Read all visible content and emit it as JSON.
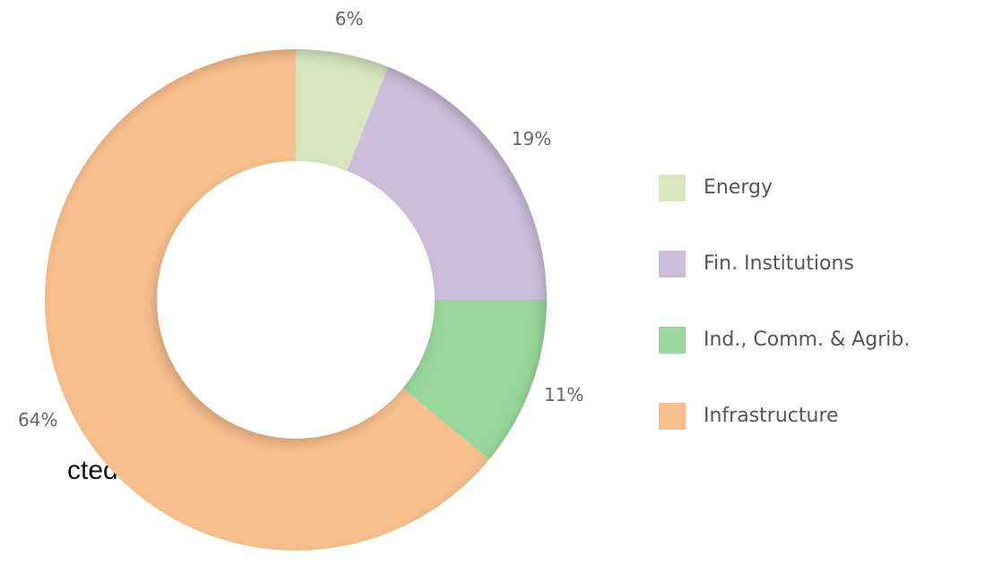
{
  "chart_data": {
    "type": "donut",
    "categories": [
      "Energy",
      "Fin. Institutions",
      "Ind., Comm. & Agrib.",
      "Infrastructure"
    ],
    "values": [
      6,
      19,
      11,
      64
    ],
    "value_labels": [
      "6%",
      "19%",
      "11%",
      "64%"
    ],
    "colors": [
      "#d8e5bf",
      "#cdbfdc",
      "#98d699",
      "#f8bf8e"
    ],
    "legend": "right"
  },
  "background_text": "cted"
}
